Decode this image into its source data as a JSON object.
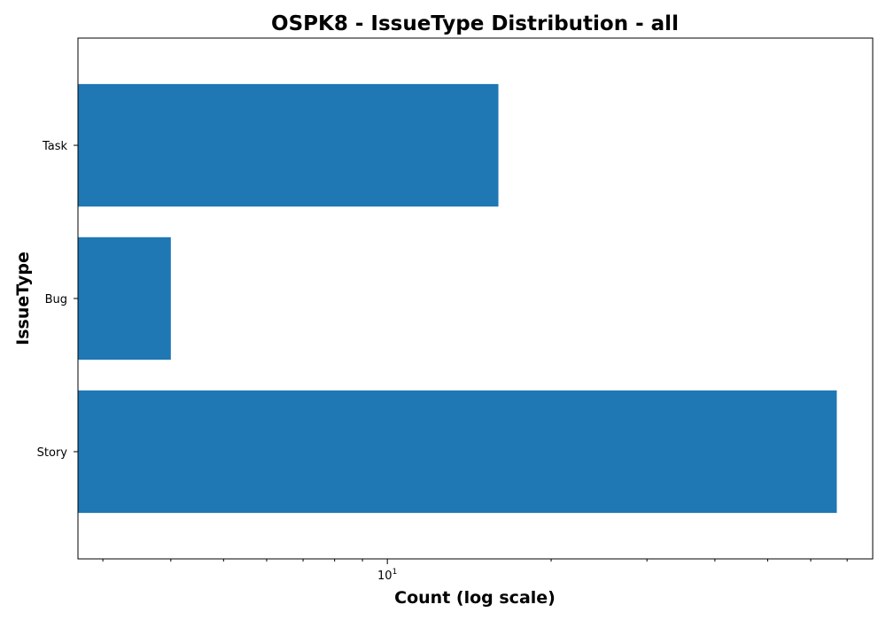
{
  "chart_data": {
    "type": "bar",
    "orientation": "horizontal",
    "title": "OSPK8 - IssueType Distribution - all",
    "xlabel": "Count (log scale)",
    "ylabel": "IssueType",
    "x_scale": "log",
    "xlim": [
      2.7,
      78
    ],
    "x_major_ticks": [
      {
        "value": 10,
        "base": "10",
        "exponent": "1"
      }
    ],
    "x_minor_ticks": [
      3,
      4,
      5,
      6,
      7,
      8,
      9,
      20,
      30,
      40,
      50,
      60,
      70
    ],
    "grid": false,
    "categories": [
      "Story",
      "Bug",
      "Task"
    ],
    "values": [
      67,
      4,
      16
    ],
    "bar_color": "#1f77b4"
  }
}
